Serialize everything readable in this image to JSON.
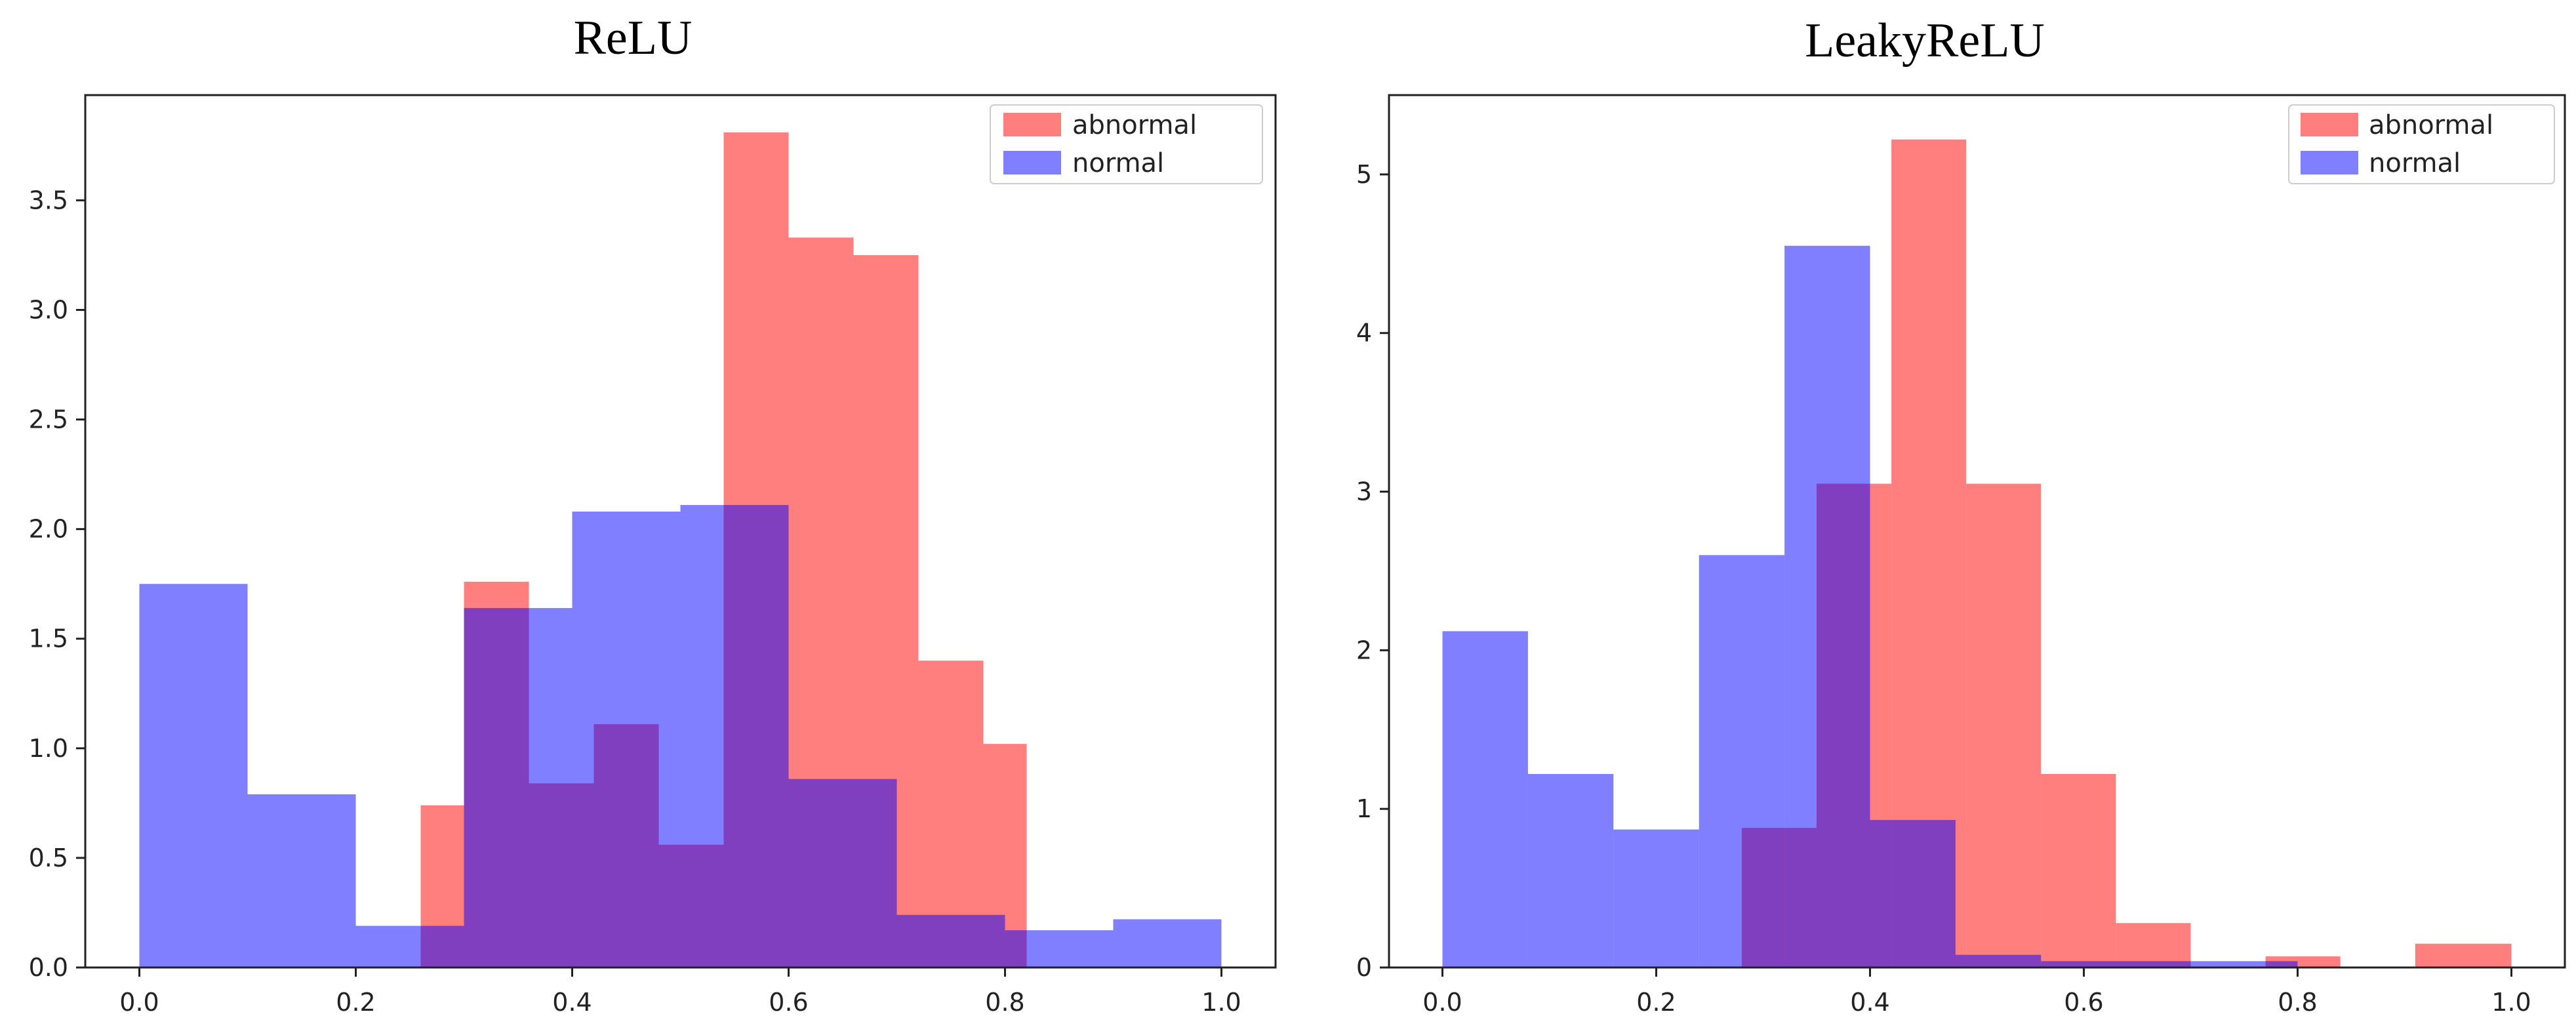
{
  "chart_data": [
    {
      "type": "bar",
      "subtype": "histogram",
      "title": "ReLU",
      "xlabel": "",
      "ylabel": "",
      "xlim": [
        -0.05,
        1.05
      ],
      "ylim": [
        0,
        3.98
      ],
      "xticks": [
        "0.0",
        "0.2",
        "0.4",
        "0.6",
        "0.8",
        "1.0"
      ],
      "yticks": [
        "0.0",
        "0.5",
        "1.0",
        "1.5",
        "2.0",
        "2.5",
        "3.0",
        "3.5"
      ],
      "legend_position": "top-right",
      "series": [
        {
          "name": "abnormal",
          "color": "#ff0000",
          "alpha": 0.5,
          "bins": [
            0.26,
            0.3,
            0.36,
            0.42,
            0.48,
            0.54,
            0.6,
            0.66,
            0.72,
            0.78,
            0.82
          ],
          "values": [
            0.74,
            1.76,
            0.84,
            1.11,
            0.56,
            3.81,
            3.33,
            3.25,
            1.4,
            1.02
          ]
        },
        {
          "name": "normal",
          "color": "#0000ff",
          "alpha": 0.5,
          "bins": [
            0.0,
            0.1,
            0.2,
            0.3,
            0.4,
            0.5,
            0.6,
            0.7,
            0.8,
            0.9,
            1.0
          ],
          "values": [
            1.75,
            0.79,
            0.19,
            1.64,
            2.08,
            2.11,
            0.86,
            0.24,
            0.17,
            0.22
          ]
        }
      ]
    },
    {
      "type": "bar",
      "subtype": "histogram",
      "title": "LeakyReLU",
      "xlabel": "",
      "ylabel": "",
      "xlim": [
        -0.05,
        1.05
      ],
      "ylim": [
        0,
        5.5
      ],
      "xticks": [
        "0.0",
        "0.2",
        "0.4",
        "0.6",
        "0.8",
        "1.0"
      ],
      "yticks": [
        "0",
        "1",
        "2",
        "3",
        "4",
        "5"
      ],
      "legend_position": "top-right",
      "series": [
        {
          "name": "abnormal",
          "color": "#ff0000",
          "alpha": 0.5,
          "bins": [
            0.28,
            0.35,
            0.42,
            0.49,
            0.56,
            0.63,
            0.7,
            0.77,
            0.84,
            0.91,
            1.0
          ],
          "values": [
            0.88,
            3.05,
            5.22,
            3.05,
            1.22,
            0.28,
            0.0,
            0.07,
            0.0,
            0.15
          ]
        },
        {
          "name": "normal",
          "color": "#0000ff",
          "alpha": 0.5,
          "bins": [
            0.0,
            0.08,
            0.16,
            0.24,
            0.32,
            0.4,
            0.48,
            0.56,
            0.64,
            0.72,
            0.8
          ],
          "values": [
            2.12,
            1.22,
            0.87,
            2.6,
            4.55,
            0.93,
            0.08,
            0.04,
            0.04,
            0.04
          ]
        }
      ]
    }
  ]
}
